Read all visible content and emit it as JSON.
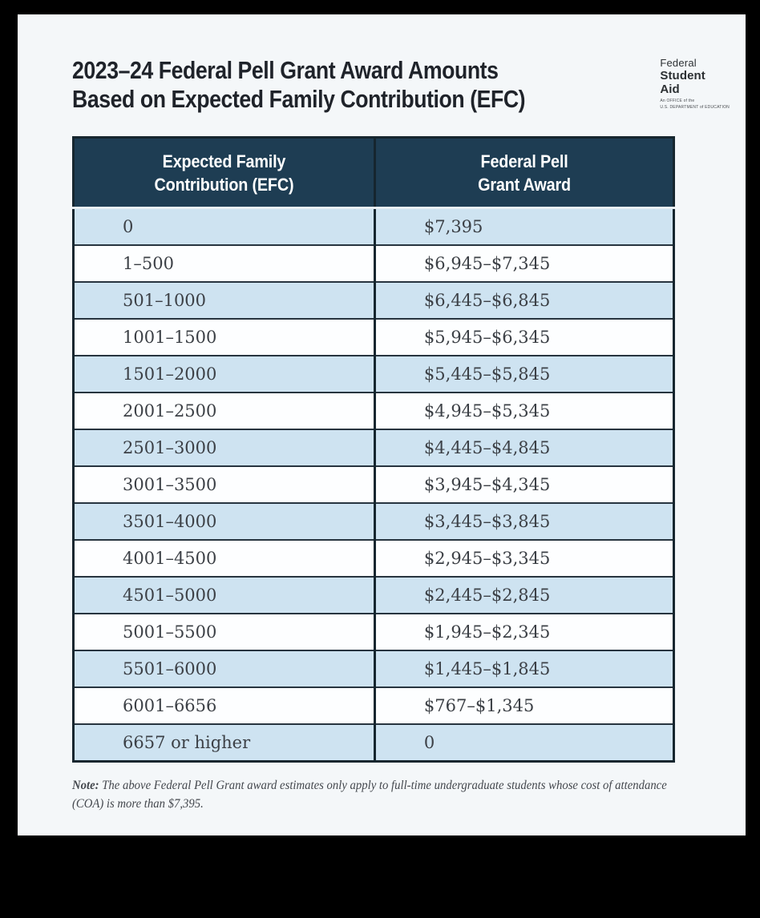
{
  "document": {
    "title_line1": "2023–24 Federal Pell Grant Award Amounts",
    "title_line2": "Based on Expected Family Contribution (EFC)"
  },
  "logo": {
    "word1": "Federal",
    "word2": "Student",
    "word3": "Aid",
    "tagline_line1": "An OFFICE of the",
    "tagline_line2": "U.S. DEPARTMENT of EDUCATION"
  },
  "table": {
    "col1_header_line1": "Expected Family",
    "col1_header_line2": "Contribution (EFC)",
    "col2_header_line1": "Federal Pell",
    "col2_header_line2": "Grant Award",
    "rows": [
      {
        "efc": "0",
        "award": "$7,395"
      },
      {
        "efc": "1–500",
        "award": "$6,945–$7,345"
      },
      {
        "efc": "501–1000",
        "award": "$6,445–$6,845"
      },
      {
        "efc": "1001–1500",
        "award": "$5,945–$6,345"
      },
      {
        "efc": "1501–2000",
        "award": "$5,445–$5,845"
      },
      {
        "efc": "2001–2500",
        "award": "$4,945–$5,345"
      },
      {
        "efc": "2501–3000",
        "award": "$4,445–$4,845"
      },
      {
        "efc": "3001–3500",
        "award": "$3,945–$4,345"
      },
      {
        "efc": "3501–4000",
        "award": "$3,445–$3,845"
      },
      {
        "efc": "4001–4500",
        "award": "$2,945–$3,345"
      },
      {
        "efc": "4501–5000",
        "award": "$2,445–$2,845"
      },
      {
        "efc": "5001–5500",
        "award": "$1,945–$2,345"
      },
      {
        "efc": "5501–6000",
        "award": "$1,445–$1,845"
      },
      {
        "efc": "6001–6656",
        "award": "$767–$1,345"
      },
      {
        "efc": "6657 or higher",
        "award": "0"
      }
    ]
  },
  "note": {
    "label": "Note:",
    "text": " The above Federal Pell Grant award estimates only apply to full-time undergraduate students whose cost of attendance (COA) is more than $7,395."
  },
  "colors": {
    "header_navy": "#1e3d53",
    "row_blue": "#cee3f1",
    "row_white": "#fdfeff",
    "table_border": "#16262f",
    "page_background": "#f4f7f9",
    "frame_black": "#000000"
  }
}
